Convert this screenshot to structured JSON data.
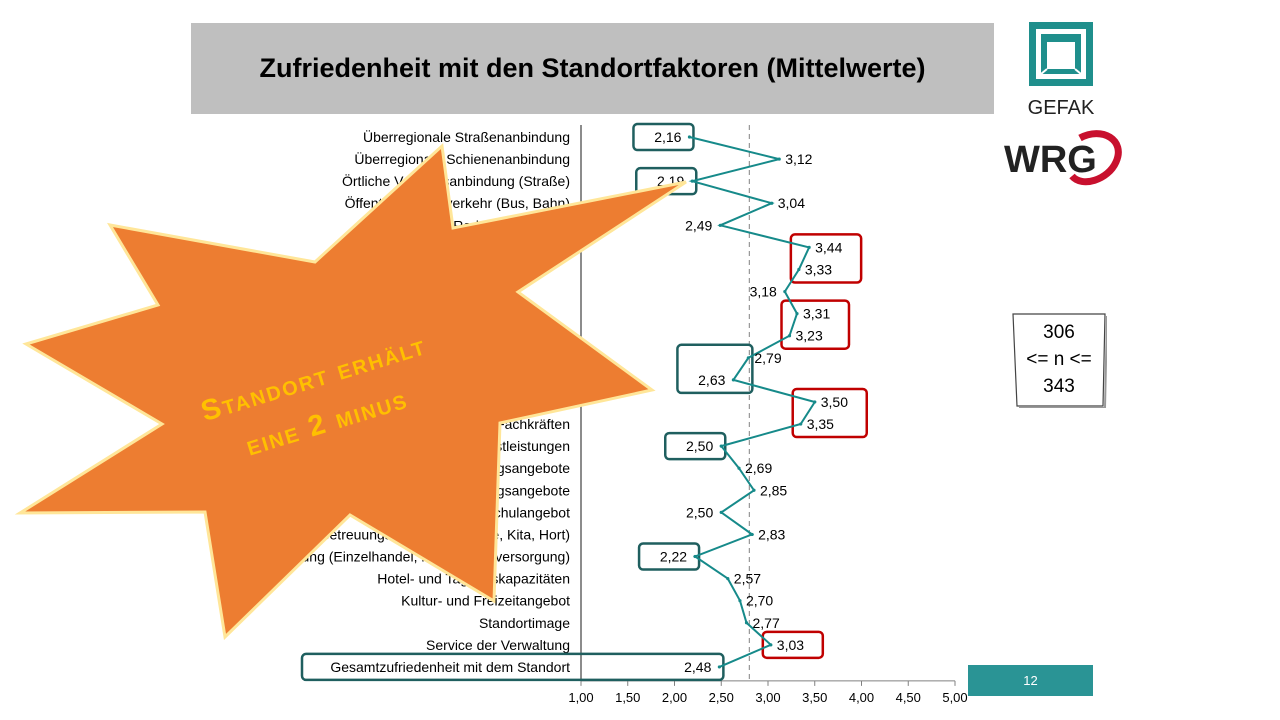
{
  "title": "Zufriedenheit mit den Standortfaktoren (Mittelwerte)",
  "logos": {
    "gefak": "GEFAK",
    "wrg": "WRG"
  },
  "sample_box": {
    "line1": "306",
    "line2": "<= n <=",
    "line3": "343"
  },
  "page_number": "12",
  "starburst": {
    "line1": "Standort erhält",
    "line2": "eine 2 minus",
    "color": "#ed7d31",
    "text_color": "#ffc000"
  },
  "colors": {
    "line": "#168a8a",
    "green_box": "#1f5f5f",
    "red_box": "#c00000"
  },
  "chart_data": {
    "type": "line",
    "orientation": "horizontal",
    "title": "Zufriedenheit mit den Standortfaktoren (Mittelwerte)",
    "xlim": [
      1.0,
      5.0
    ],
    "x_ticks": [
      "1,00",
      "1,50",
      "2,00",
      "2,50",
      "3,00",
      "3,50",
      "4,00",
      "4,50",
      "5,00"
    ],
    "reference_line": 2.8,
    "categories": [
      "Überregionale Straßenanbindung",
      "Überregionale Schienenanbindung",
      "Örtliche Verkehrsanbindung (Straße)",
      "Öffentlicher Nahverkehr (Bus, Bahn)",
      "Radweganbindung",
      "",
      "",
      "",
      "",
      "",
      "",
      "",
      "",
      "Verfügbarkeit von Fachkräften",
      "Dienstleistungen",
      "Ausbildungsangebote",
      "Weiterbildungsangebote",
      "Schulangebot",
      "Betreuungsangebote (Krippe, Kita, Hort)",
      "Versorgung (Einzelhandel, med. Grundversorgung)",
      "Hotel- und Tagungskapazitäten",
      "Kultur- und Freizeitangebot",
      "Standortimage",
      "Service der Verwaltung",
      "Gesamtzufriedenheit mit dem Standort"
    ],
    "values": [
      2.16,
      3.12,
      2.19,
      3.04,
      2.49,
      3.44,
      3.33,
      3.18,
      3.31,
      3.23,
      2.79,
      2.63,
      3.5,
      3.35,
      2.5,
      2.69,
      2.85,
      2.5,
      2.83,
      2.22,
      2.57,
      2.7,
      2.77,
      3.03,
      2.48
    ],
    "value_labels": [
      "2,16",
      "3,12",
      "2,19",
      "3,04",
      "2,49",
      "3,44",
      "3,33",
      "3,18",
      "3,31",
      "3,23",
      "2,79",
      "2,63",
      "3,50",
      "3,35",
      "2,50",
      "2,69",
      "2,85",
      "2,50",
      "2,83",
      "2,22",
      "2,57",
      "2,70",
      "2,77",
      "3,03",
      "2,48"
    ],
    "highlight_green": [
      [
        0,
        0
      ],
      [
        2,
        2
      ],
      [
        10,
        11
      ],
      [
        14,
        14
      ],
      [
        19,
        19
      ],
      [
        24,
        24
      ]
    ],
    "highlight_red": [
      [
        5,
        6
      ],
      [
        8,
        9
      ],
      [
        12,
        13
      ],
      [
        23,
        23
      ]
    ]
  }
}
